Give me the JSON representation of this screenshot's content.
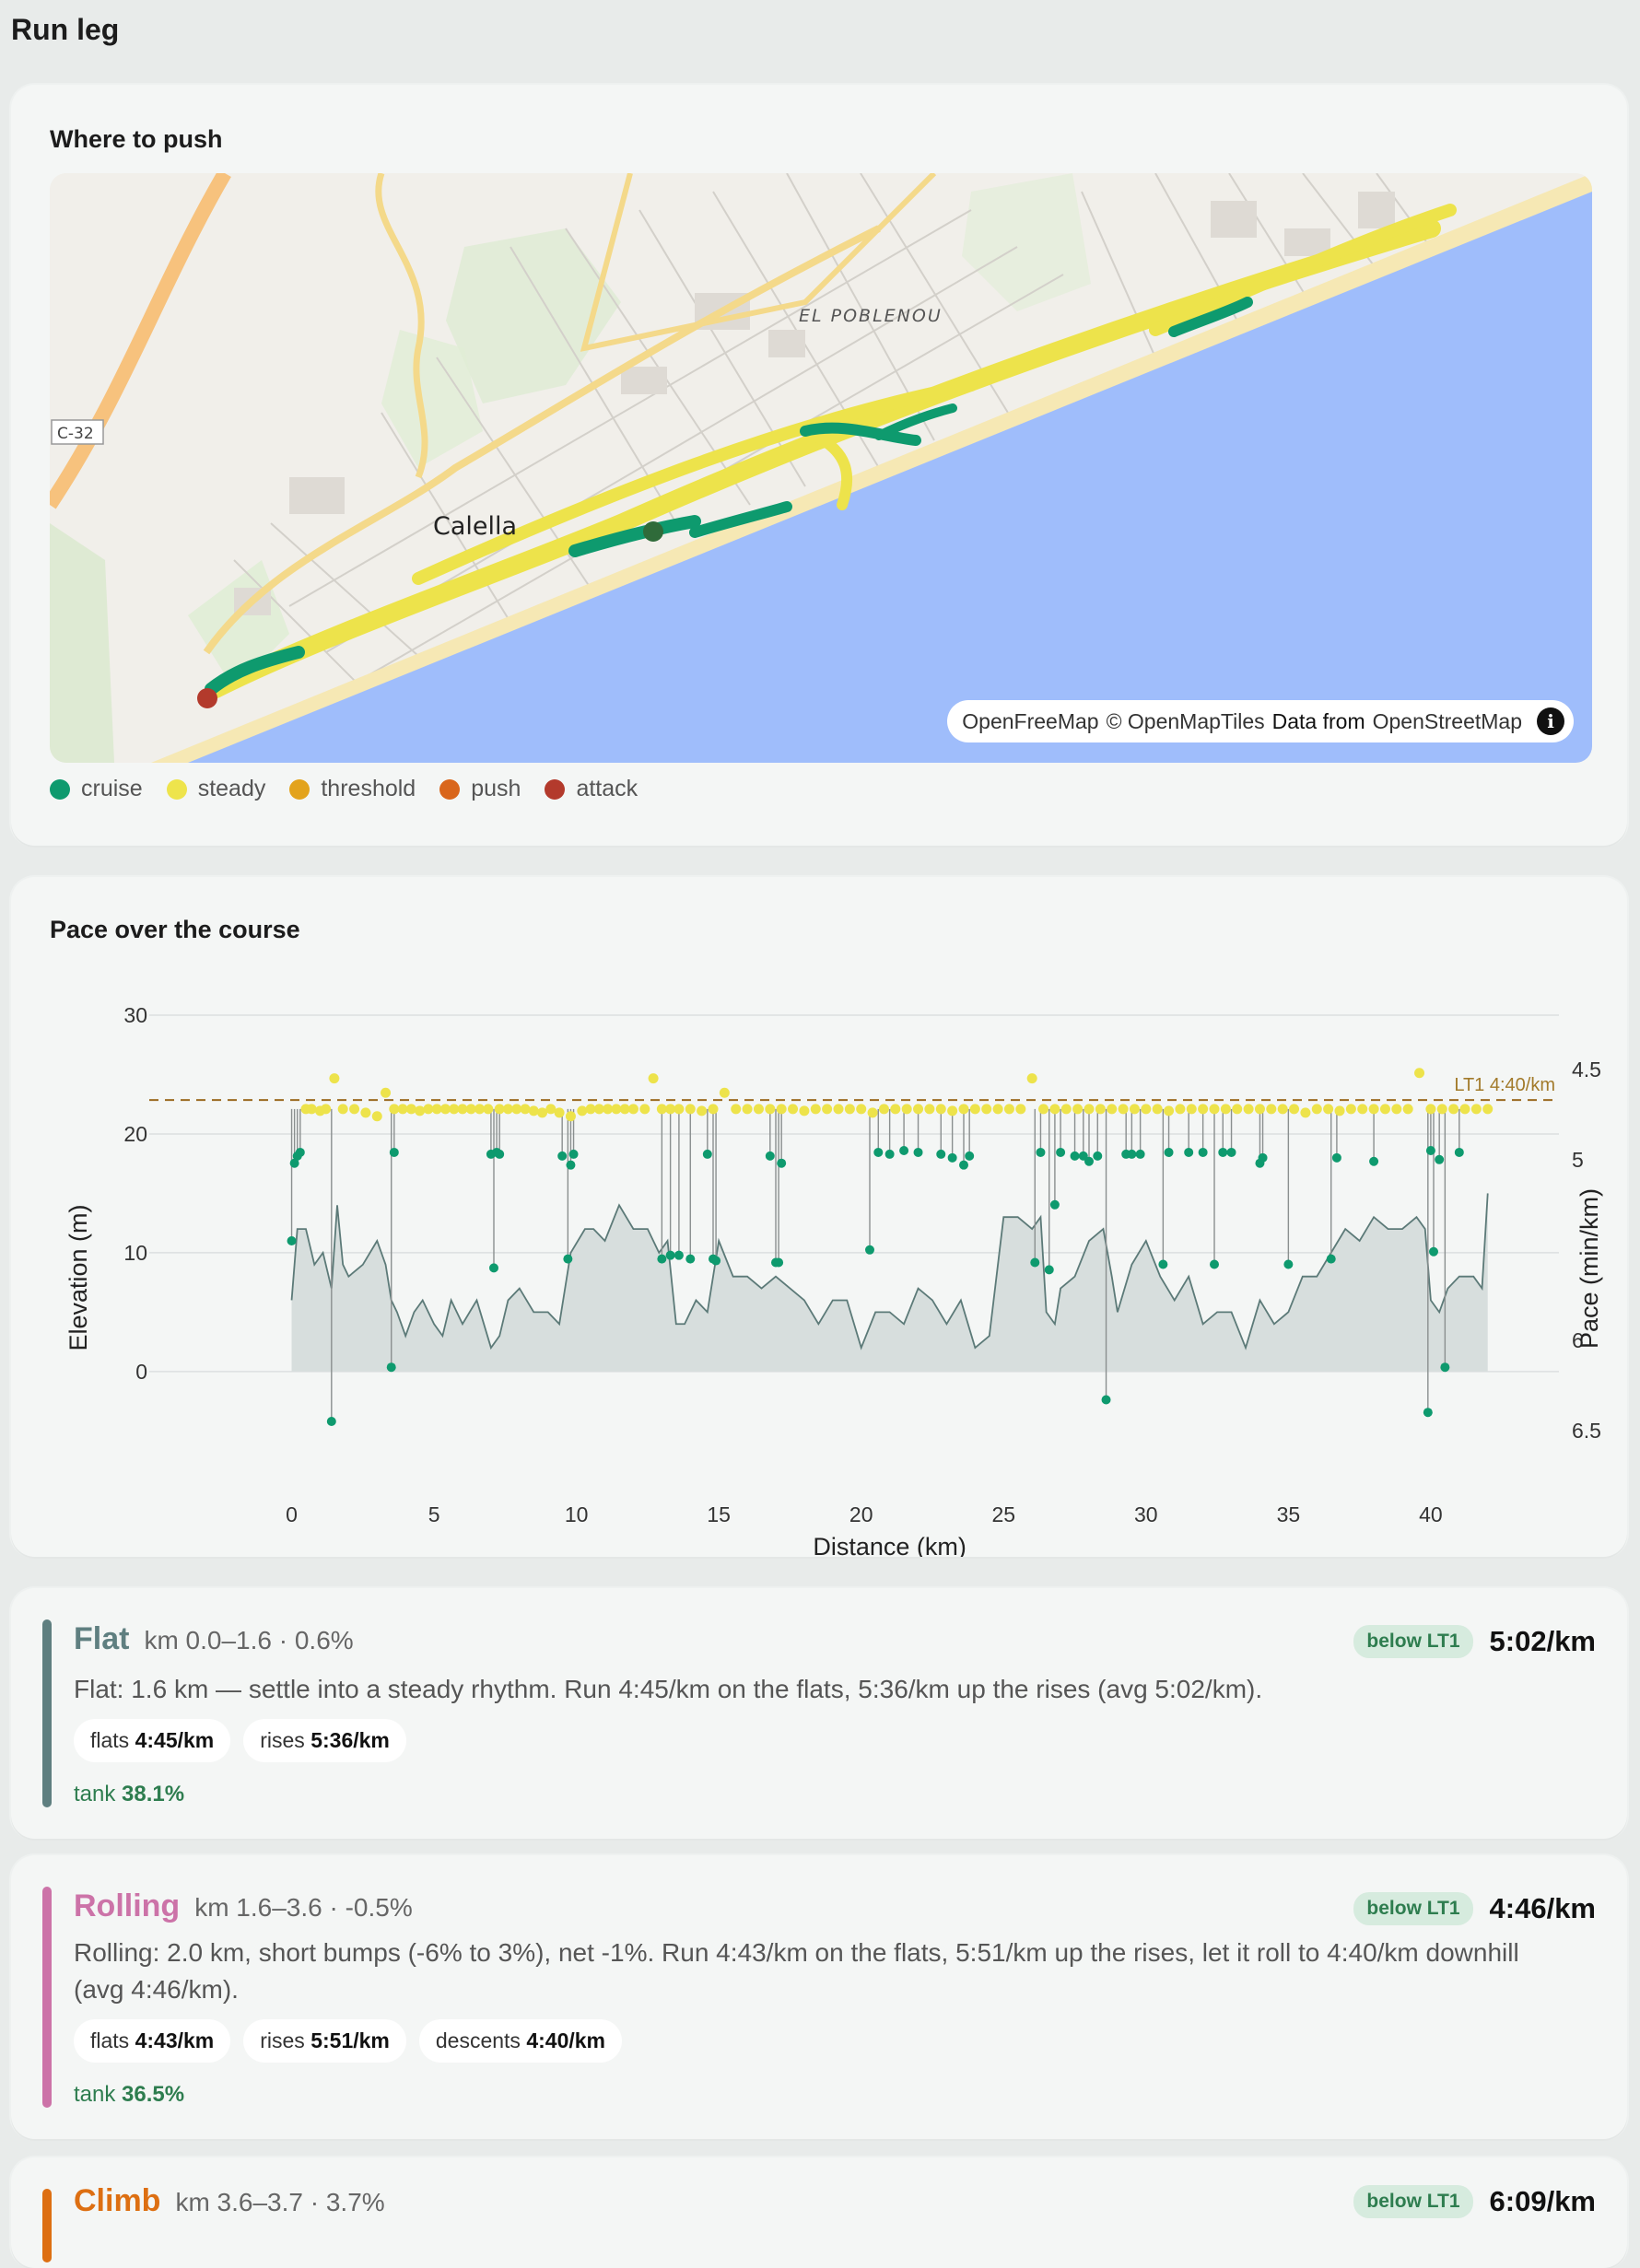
{
  "page_title": "Run leg",
  "map_card": {
    "title": "Where to push",
    "labels": {
      "district": "EL POBLENOU",
      "town": "Calella",
      "road": "C-32"
    },
    "attribution": {
      "a": "OpenFreeMap",
      "b": "© OpenMapTiles",
      "c": "Data from",
      "d": "OpenStreetMap"
    },
    "legend": [
      {
        "label": "cruise",
        "color": "#0e9a6e"
      },
      {
        "label": "steady",
        "color": "#eee44c"
      },
      {
        "label": "threshold",
        "color": "#e3a31c"
      },
      {
        "label": "push",
        "color": "#d9661c"
      },
      {
        "label": "attack",
        "color": "#b33a2c"
      }
    ]
  },
  "pace_card": {
    "title": "Pace over the course"
  },
  "chart_data": {
    "type": "line",
    "xlabel": "Distance (km)",
    "ylabel": "Elevation (m)",
    "y2label": "Pace (min/km)",
    "xlim": [
      -5,
      44.5
    ],
    "ylim": [
      -8,
      30
    ],
    "xticks": [
      "0",
      "5",
      "10",
      "15",
      "20",
      "25",
      "30",
      "35",
      "40"
    ],
    "xtick_values": [
      0,
      5,
      10,
      15,
      20,
      25,
      30,
      35,
      40
    ],
    "yticks": [
      "0",
      "10",
      "20",
      "30"
    ],
    "ytick_values": [
      0,
      10,
      20,
      30
    ],
    "y2ticks": [
      "4.5",
      "5",
      "6",
      "6.5"
    ],
    "y2tick_values": [
      4.5,
      5.0,
      6.0,
      6.5
    ],
    "y2lim": [
      4.2,
      6.7
    ],
    "lt1": {
      "label": "LT1 4:40/km",
      "pace": 4.67
    },
    "grid": true,
    "series": [
      {
        "kind": "elevation",
        "x": [
          0,
          0.2,
          0.5,
          0.8,
          1.1,
          1.4,
          1.6,
          1.8,
          2.0,
          2.5,
          3.0,
          3.3,
          3.5,
          3.7,
          4.0,
          4.3,
          4.6,
          5.0,
          5.3,
          5.6,
          6.0,
          6.5,
          7.0,
          7.3,
          7.6,
          8.0,
          8.5,
          9.0,
          9.4,
          9.8,
          10.3,
          10.6,
          11.0,
          11.5,
          12.0,
          12.5,
          12.9,
          13.2,
          13.5,
          13.8,
          14.2,
          14.6,
          15.0,
          15.5,
          16.0,
          16.5,
          17.0,
          17.5,
          18.0,
          18.5,
          19.0,
          19.5,
          20.0,
          20.5,
          21.0,
          21.5,
          22.0,
          22.5,
          23.0,
          23.5,
          24.0,
          24.5,
          25.0,
          25.5,
          26.0,
          26.3,
          26.5,
          26.8,
          27.0,
          27.5,
          28.0,
          28.5,
          28.8,
          29.0,
          29.5,
          30.0,
          30.5,
          31.0,
          31.5,
          32.0,
          32.5,
          33.0,
          33.5,
          34.0,
          34.5,
          35.0,
          35.5,
          36.0,
          36.5,
          37.0,
          37.5,
          38.0,
          38.5,
          39.0,
          39.5,
          39.8,
          40.0,
          40.3,
          40.6,
          41.0,
          41.5,
          41.8,
          42.0
        ],
        "values": [
          6,
          12,
          12,
          9,
          10,
          7,
          14,
          9,
          8,
          9,
          11,
          9,
          6,
          5,
          3,
          5,
          6,
          4,
          3,
          6,
          4,
          6,
          2,
          3,
          6,
          7,
          5,
          5,
          4,
          10,
          12,
          12,
          11,
          14,
          12,
          12,
          10,
          11,
          4,
          4,
          6,
          5,
          11,
          8,
          8,
          7,
          8,
          7,
          6,
          4,
          6,
          6,
          2,
          5,
          5,
          4,
          7,
          6,
          4,
          6,
          2,
          3,
          13,
          13,
          12,
          13,
          5,
          4,
          7,
          8,
          11,
          12,
          8,
          5,
          9,
          11,
          8,
          6,
          8,
          4,
          5,
          5,
          2,
          6,
          4,
          5,
          8,
          8,
          10,
          12,
          11,
          13,
          12,
          12,
          13,
          12,
          6,
          5,
          7,
          8,
          8,
          7,
          15
        ]
      },
      {
        "kind": "pace_cruise",
        "x": [
          0,
          0.1,
          0.2,
          0.3,
          1.4,
          3.5,
          3.6,
          7.0,
          7.1,
          7.2,
          7.3,
          9.5,
          9.7,
          9.8,
          9.9,
          13.0,
          13.3,
          13.6,
          14.0,
          14.6,
          14.8,
          14.9,
          16.8,
          17.0,
          17.1,
          17.2,
          20.3,
          20.6,
          21.0,
          21.5,
          22.0,
          22.8,
          23.2,
          23.6,
          23.8,
          26.1,
          26.3,
          26.6,
          26.8,
          27.0,
          27.5,
          27.8,
          28.0,
          28.3,
          28.6,
          29.3,
          29.5,
          29.8,
          30.6,
          30.8,
          31.5,
          32.0,
          32.4,
          32.7,
          33.0,
          34.0,
          34.1,
          35.0,
          36.5,
          36.7,
          38.0,
          39.9,
          40.0,
          40.1,
          40.3,
          40.5,
          41.0
        ],
        "values": [
          5.45,
          5.02,
          4.98,
          4.96,
          6.45,
          6.15,
          4.96,
          4.97,
          5.6,
          4.96,
          4.97,
          4.98,
          5.55,
          5.03,
          4.97,
          5.55,
          5.53,
          5.53,
          5.55,
          4.97,
          5.55,
          5.56,
          4.98,
          5.57,
          5.57,
          5.02,
          5.5,
          4.96,
          4.97,
          4.95,
          4.96,
          4.97,
          4.99,
          5.03,
          4.98,
          5.57,
          4.96,
          5.61,
          5.25,
          4.96,
          4.98,
          4.98,
          5.01,
          4.98,
          6.33,
          4.97,
          4.97,
          4.97,
          5.58,
          4.96,
          4.96,
          4.96,
          5.58,
          4.96,
          4.96,
          5.02,
          4.99,
          5.58,
          5.55,
          4.99,
          5.01,
          6.4,
          4.95,
          5.51,
          5.0,
          6.15,
          4.96
        ]
      },
      {
        "kind": "pace_steady",
        "x": [
          0.5,
          0.7,
          1.0,
          1.2,
          1.5,
          1.8,
          2.2,
          2.6,
          3.0,
          3.3,
          3.6,
          3.9,
          4.2,
          4.5,
          4.8,
          5.1,
          5.4,
          5.7,
          6.0,
          6.3,
          6.6,
          6.9,
          7.3,
          7.6,
          7.9,
          8.2,
          8.5,
          8.8,
          9.1,
          9.4,
          9.8,
          10.2,
          10.5,
          10.8,
          11.1,
          11.4,
          11.7,
          12.0,
          12.4,
          12.7,
          13.0,
          13.3,
          13.6,
          14.0,
          14.4,
          14.8,
          15.2,
          15.6,
          16.0,
          16.4,
          16.8,
          17.2,
          17.6,
          18.0,
          18.4,
          18.8,
          19.2,
          19.6,
          20.0,
          20.4,
          20.8,
          21.2,
          21.6,
          22.0,
          22.4,
          22.8,
          23.2,
          23.6,
          24.0,
          24.4,
          24.8,
          25.2,
          25.6,
          26.0,
          26.4,
          26.8,
          27.2,
          27.6,
          28.0,
          28.4,
          28.8,
          29.2,
          29.6,
          30.0,
          30.4,
          30.8,
          31.2,
          31.6,
          32.0,
          32.4,
          32.8,
          33.2,
          33.6,
          34.0,
          34.4,
          34.8,
          35.2,
          35.6,
          36.0,
          36.4,
          36.8,
          37.2,
          37.6,
          38.0,
          38.4,
          38.8,
          39.2,
          39.6,
          40.0,
          40.4,
          40.8,
          41.2,
          41.6,
          42.0
        ],
        "values": [
          4.72,
          4.72,
          4.73,
          4.72,
          4.55,
          4.72,
          4.72,
          4.74,
          4.76,
          4.63,
          4.72,
          4.72,
          4.72,
          4.73,
          4.72,
          4.72,
          4.72,
          4.72,
          4.72,
          4.72,
          4.72,
          4.72,
          4.72,
          4.72,
          4.72,
          4.72,
          4.73,
          4.74,
          4.72,
          4.74,
          4.76,
          4.73,
          4.72,
          4.72,
          4.72,
          4.72,
          4.72,
          4.72,
          4.72,
          4.55,
          4.72,
          4.72,
          4.72,
          4.72,
          4.73,
          4.72,
          4.63,
          4.72,
          4.72,
          4.72,
          4.72,
          4.72,
          4.72,
          4.73,
          4.72,
          4.72,
          4.72,
          4.72,
          4.72,
          4.74,
          4.72,
          4.72,
          4.72,
          4.72,
          4.72,
          4.72,
          4.73,
          4.72,
          4.72,
          4.72,
          4.72,
          4.72,
          4.72,
          4.55,
          4.72,
          4.72,
          4.72,
          4.72,
          4.72,
          4.72,
          4.72,
          4.72,
          4.72,
          4.72,
          4.72,
          4.73,
          4.72,
          4.72,
          4.72,
          4.72,
          4.72,
          4.72,
          4.72,
          4.72,
          4.72,
          4.72,
          4.72,
          4.74,
          4.72,
          4.72,
          4.73,
          4.72,
          4.72,
          4.72,
          4.72,
          4.72,
          4.72,
          4.52,
          4.72,
          4.72,
          4.72,
          4.72,
          4.72,
          4.72
        ]
      }
    ]
  },
  "segments": [
    {
      "name": "Flat",
      "color": "#5f7f80",
      "range": "km 0.0–1.6 · 0.6%",
      "badge": "below LT1",
      "pace": "5:02/km",
      "desc": "Flat: 1.6 km — settle into a steady rhythm. Run 4:45/km on the flats, 5:36/km up the rises (avg 5:02/km).",
      "chips": [
        {
          "k": "flats",
          "v": "4:45/km"
        },
        {
          "k": "rises",
          "v": "5:36/km"
        }
      ],
      "tank_label": "tank",
      "tank": "38.1%"
    },
    {
      "name": "Rolling",
      "color": "#cc73a8",
      "range": "km 1.6–3.6 · -0.5%",
      "badge": "below LT1",
      "pace": "4:46/km",
      "desc": "Rolling: 2.0 km, short bumps (-6% to 3%), net -1%. Run 4:43/km on the flats, 5:51/km up the rises, let it roll to 4:40/km downhill (avg 4:46/km).",
      "chips": [
        {
          "k": "flats",
          "v": "4:43/km"
        },
        {
          "k": "rises",
          "v": "5:51/km"
        },
        {
          "k": "descents",
          "v": "4:40/km"
        }
      ],
      "tank_label": "tank",
      "tank": "36.5%"
    },
    {
      "name": "Climb",
      "color": "#dd6f12",
      "range": "km 3.6–3.7 · 3.7%",
      "badge": "below LT1",
      "pace": "6:09/km"
    }
  ]
}
